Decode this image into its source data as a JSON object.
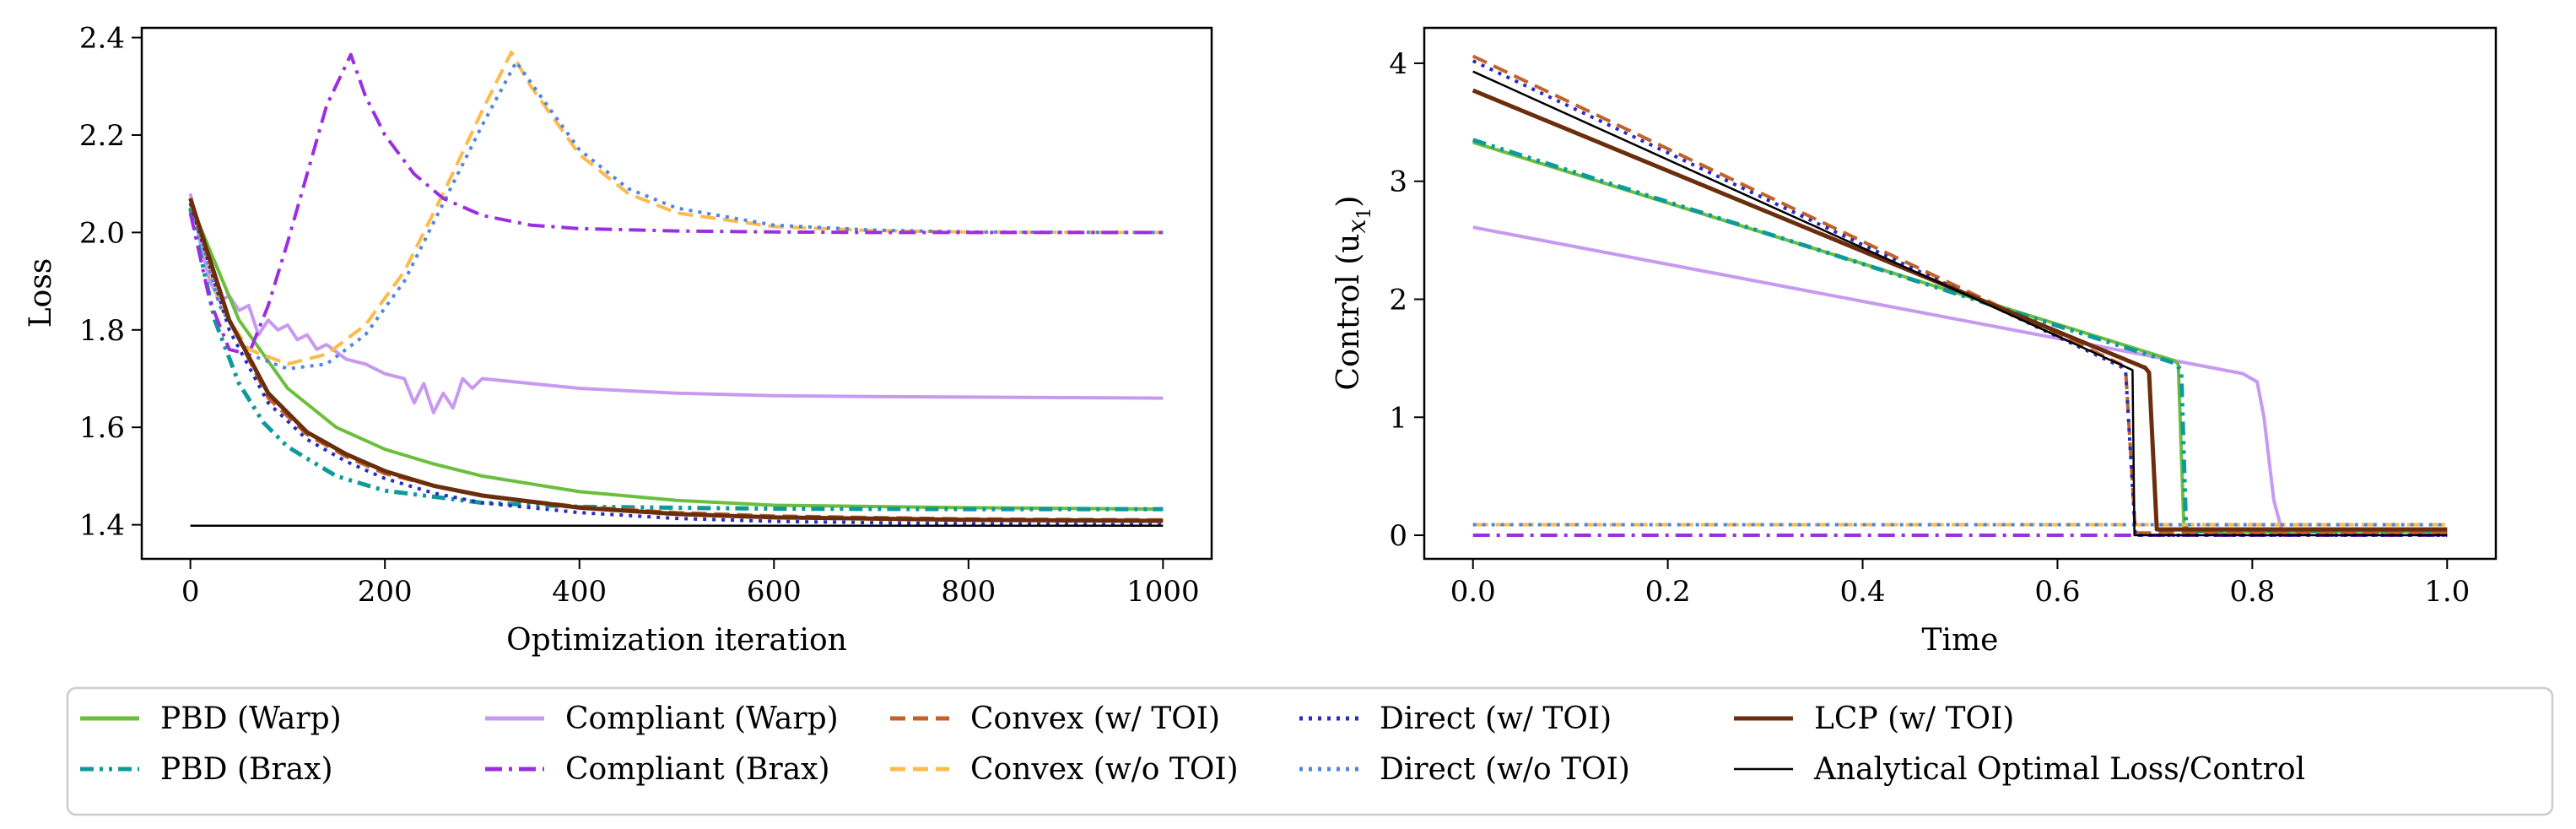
{
  "chart_data": [
    {
      "type": "line",
      "xlabel": "Optimization iteration",
      "ylabel": "Loss",
      "xlim": [
        -50,
        1050
      ],
      "ylim": [
        1.33,
        2.42
      ],
      "xticks": [
        0,
        200,
        400,
        600,
        800,
        1000
      ],
      "yticks": [
        1.4,
        1.6,
        1.8,
        2.0,
        2.2,
        2.4
      ],
      "xtick_labels": [
        "0",
        "200",
        "400",
        "600",
        "800",
        "1000"
      ],
      "ytick_labels": [
        "1.4",
        "1.6",
        "1.8",
        "2.0",
        "2.2",
        "2.4"
      ],
      "series": [
        {
          "key": "pbd_warp",
          "x": [
            0,
            50,
            100,
            150,
            200,
            250,
            300,
            400,
            500,
            600,
            800,
            1000
          ],
          "y": [
            2.06,
            1.82,
            1.68,
            1.6,
            1.555,
            1.525,
            1.5,
            1.468,
            1.45,
            1.44,
            1.435,
            1.432
          ]
        },
        {
          "key": "pbd_brax",
          "x": [
            0,
            25,
            50,
            75,
            100,
            150,
            200,
            300,
            400,
            600,
            800,
            1000
          ],
          "y": [
            2.05,
            1.82,
            1.69,
            1.61,
            1.56,
            1.5,
            1.47,
            1.445,
            1.437,
            1.433,
            1.432,
            1.432
          ]
        },
        {
          "key": "compliant_warp",
          "x": [
            0,
            10,
            20,
            30,
            40,
            50,
            60,
            70,
            80,
            90,
            100,
            110,
            120,
            130,
            140,
            160,
            180,
            200,
            220,
            230,
            240,
            250,
            260,
            270,
            280,
            290,
            300,
            350,
            400,
            500,
            600,
            700,
            800,
            900,
            1000
          ],
          "y": [
            2.08,
            1.98,
            1.9,
            1.86,
            1.87,
            1.84,
            1.85,
            1.79,
            1.82,
            1.8,
            1.81,
            1.78,
            1.79,
            1.76,
            1.77,
            1.74,
            1.73,
            1.71,
            1.7,
            1.65,
            1.69,
            1.63,
            1.67,
            1.64,
            1.7,
            1.68,
            1.7,
            1.69,
            1.68,
            1.67,
            1.665,
            1.663,
            1.662,
            1.661,
            1.66
          ]
        },
        {
          "key": "compliant_brax",
          "x": [
            0,
            20,
            40,
            60,
            80,
            100,
            120,
            140,
            165,
            180,
            200,
            230,
            260,
            300,
            350,
            400,
            500,
            600,
            700,
            800,
            900,
            1000
          ],
          "y": [
            2.04,
            1.86,
            1.76,
            1.75,
            1.85,
            1.98,
            2.12,
            2.26,
            2.365,
            2.28,
            2.2,
            2.12,
            2.07,
            2.035,
            2.015,
            2.008,
            2.003,
            2.001,
            2.0,
            2.0,
            2.0,
            2.0
          ]
        },
        {
          "key": "convex_toi",
          "x": [
            0,
            40,
            80,
            120,
            160,
            200,
            250,
            300,
            400,
            500,
            600,
            800,
            1000
          ],
          "y": [
            2.06,
            1.82,
            1.66,
            1.585,
            1.54,
            1.505,
            1.48,
            1.46,
            1.437,
            1.425,
            1.418,
            1.412,
            1.41
          ]
        },
        {
          "key": "convex_notoi",
          "x": [
            0,
            30,
            60,
            100,
            140,
            180,
            220,
            260,
            300,
            330,
            350,
            400,
            450,
            500,
            600,
            700,
            800,
            1000
          ],
          "y": [
            2.07,
            1.85,
            1.76,
            1.73,
            1.75,
            1.81,
            1.92,
            2.08,
            2.25,
            2.37,
            2.3,
            2.16,
            2.08,
            2.04,
            2.012,
            2.004,
            2.001,
            2.0
          ]
        },
        {
          "key": "direct_toi",
          "x": [
            0,
            40,
            80,
            120,
            160,
            200,
            250,
            300,
            400,
            500,
            600,
            800,
            1000
          ],
          "y": [
            2.06,
            1.8,
            1.65,
            1.575,
            1.53,
            1.495,
            1.465,
            1.445,
            1.425,
            1.413,
            1.407,
            1.402,
            1.4
          ]
        },
        {
          "key": "direct_notoi",
          "x": [
            0,
            30,
            60,
            100,
            140,
            180,
            220,
            260,
            300,
            335,
            360,
            400,
            450,
            500,
            600,
            700,
            800,
            1000
          ],
          "y": [
            2.07,
            1.85,
            1.75,
            1.72,
            1.73,
            1.79,
            1.9,
            2.06,
            2.22,
            2.35,
            2.28,
            2.17,
            2.09,
            2.05,
            2.015,
            2.005,
            2.001,
            2.0
          ]
        },
        {
          "key": "lcp_toi",
          "x": [
            0,
            40,
            80,
            120,
            160,
            200,
            250,
            300,
            400,
            500,
            600,
            800,
            1000
          ],
          "y": [
            2.07,
            1.82,
            1.67,
            1.59,
            1.545,
            1.51,
            1.48,
            1.46,
            1.435,
            1.422,
            1.415,
            1.41,
            1.408
          ]
        },
        {
          "key": "analytical",
          "x": [
            0,
            1000
          ],
          "y": [
            1.398,
            1.398
          ]
        }
      ]
    },
    {
      "type": "line",
      "xlabel": "Time",
      "ylabel": "Control (u",
      "ylabel_sub": "x",
      "ylabel_subsub": "1",
      "ylabel_close": ")",
      "xlim": [
        -0.05,
        1.05
      ],
      "ylim": [
        -0.2,
        4.3
      ],
      "xticks": [
        0.0,
        0.2,
        0.4,
        0.6,
        0.8,
        1.0
      ],
      "yticks": [
        0,
        1,
        2,
        3,
        4
      ],
      "xtick_labels": [
        "0.0",
        "0.2",
        "0.4",
        "0.6",
        "0.8",
        "1.0"
      ],
      "ytick_labels": [
        "0",
        "1",
        "2",
        "3",
        "4"
      ],
      "series": [
        {
          "key": "pbd_warp",
          "x": [
            0,
            0.72,
            0.724,
            0.73,
            0.735,
            1.0
          ],
          "y": [
            3.33,
            1.48,
            1.45,
            0.03,
            0.03,
            0.03
          ]
        },
        {
          "key": "pbd_brax",
          "x": [
            0,
            0.72,
            0.727,
            0.732,
            1.0
          ],
          "y": [
            3.35,
            1.46,
            1.4,
            0.04,
            0.04
          ]
        },
        {
          "key": "compliant_warp",
          "x": [
            0,
            0.79,
            0.805,
            0.812,
            0.822,
            0.83,
            1.0
          ],
          "y": [
            2.61,
            1.37,
            1.3,
            1.0,
            0.3,
            0.05,
            0.05
          ]
        },
        {
          "key": "compliant_brax",
          "x": [
            0,
            1.0
          ],
          "y": [
            0.0,
            0.0
          ]
        },
        {
          "key": "convex_toi",
          "x": [
            0,
            0.665,
            0.67,
            0.68,
            1.0
          ],
          "y": [
            4.06,
            1.45,
            1.4,
            0.02,
            0.02
          ]
        },
        {
          "key": "convex_notoi",
          "x": [
            0,
            1.0
          ],
          "y": [
            0.09,
            0.09
          ]
        },
        {
          "key": "direct_toi",
          "x": [
            0,
            0.665,
            0.67,
            0.68,
            1.0
          ],
          "y": [
            4.02,
            1.43,
            1.38,
            0.0,
            0.0
          ]
        },
        {
          "key": "direct_notoi",
          "x": [
            0,
            1.0
          ],
          "y": [
            0.09,
            0.09
          ]
        },
        {
          "key": "lcp_toi",
          "x": [
            0,
            0.69,
            0.694,
            0.702,
            1.0
          ],
          "y": [
            3.77,
            1.42,
            1.38,
            0.05,
            0.05
          ]
        },
        {
          "key": "analytical",
          "x": [
            0,
            0.677,
            0.679,
            1.0
          ],
          "y": [
            3.93,
            1.4,
            0.0,
            0.0
          ]
        }
      ]
    }
  ],
  "legend": {
    "placement": "bottom",
    "entries": [
      {
        "key": "pbd_warp",
        "label": "PBD (Warp)"
      },
      {
        "key": "pbd_brax",
        "label": "PBD (Brax)"
      },
      {
        "key": "compliant_warp",
        "label": "Compliant (Warp)"
      },
      {
        "key": "compliant_brax",
        "label": "Compliant (Brax)"
      },
      {
        "key": "convex_toi",
        "label": "Convex (w/ TOI)"
      },
      {
        "key": "convex_notoi",
        "label": "Convex (w/o TOI)"
      },
      {
        "key": "direct_toi",
        "label": "Direct (w/ TOI)"
      },
      {
        "key": "direct_notoi",
        "label": "Direct (w/o TOI)"
      },
      {
        "key": "lcp_toi",
        "label": "LCP (w/ TOI)"
      },
      {
        "key": "analytical",
        "label": "Analytical Optimal Loss/Control"
      }
    ]
  },
  "styles": {
    "pbd_warp": {
      "color": "#6bbf3c",
      "dash": "solid"
    },
    "pbd_brax": {
      "color": "#0e9a9a",
      "dash": "dashdotdot"
    },
    "compliant_warp": {
      "color": "#c79af0",
      "dash": "solid"
    },
    "compliant_brax": {
      "color": "#9b2fe0",
      "dash": "dashdot"
    },
    "convex_toi": {
      "color": "#c0622a",
      "dash": "dashed"
    },
    "convex_notoi": {
      "color": "#fdbb4a",
      "dash": "dashed"
    },
    "direct_toi": {
      "color": "#2a2ac0",
      "dash": "dotted"
    },
    "direct_notoi": {
      "color": "#4f86e0",
      "dash": "dotted"
    },
    "lcp_toi": {
      "color": "#6b2e0c",
      "dash": "solid"
    },
    "analytical": {
      "color": "#000000",
      "dash": "solid"
    }
  }
}
